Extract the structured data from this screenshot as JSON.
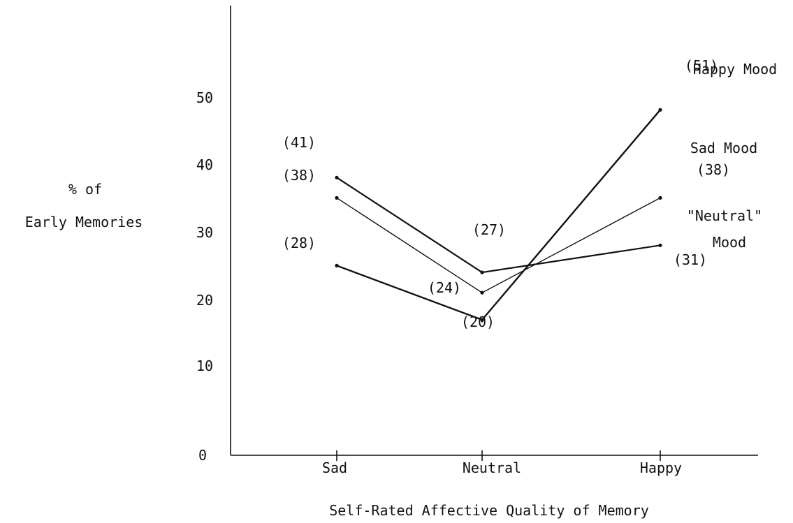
{
  "chart_data": {
    "type": "line",
    "categories": [
      "Sad",
      "Neutral",
      "Happy"
    ],
    "ylim": [
      0,
      60
    ],
    "yticks": [
      0,
      10,
      20,
      30,
      40,
      50
    ],
    "ylabel": [
      "% of",
      "Early Memories"
    ],
    "xlabel": "Self-Rated Affective Quality of Memory",
    "grid": false,
    "series": [
      {
        "name": "Happy Mood",
        "values": [
          28,
          20,
          51
        ],
        "data_labels": [
          "(28)",
          "(20)",
          "(51)"
        ]
      },
      {
        "name": "Sad Mood",
        "values": [
          38,
          24,
          38
        ],
        "data_labels": [
          "(38)",
          "(24)",
          "(38)"
        ]
      },
      {
        "name_lines": [
          "\"Neutral\"",
          "Mood"
        ],
        "values": [
          41,
          27,
          31
        ],
        "data_labels": [
          "(41)",
          "(27)",
          "(31)"
        ]
      }
    ]
  }
}
